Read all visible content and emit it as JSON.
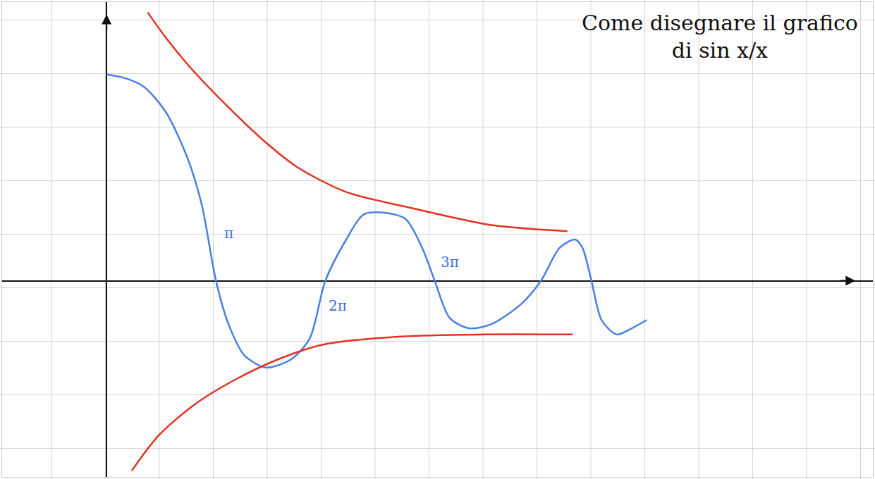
{
  "chart_data": {
    "type": "line",
    "title": "Come disegnare il grafico di sin x/x",
    "xlim": [
      -3,
      22
    ],
    "ylim": [
      -0.95,
      1.35
    ],
    "tick_labels": false,
    "line_style": "solid",
    "series": [
      {
        "color": "#4a7fe0",
        "x": [
          0,
          0.56,
          1.07,
          1.69,
          2.31,
          2.73,
          3.14,
          3.5,
          3.95,
          4.57,
          5.3,
          5.83,
          6.28,
          6.88,
          7.37,
          7.97,
          8.58,
          9.06,
          9.42,
          9.85,
          10.4,
          11.05,
          11.92,
          12.47,
          13.01,
          13.45,
          13.66,
          13.92,
          14.21,
          14.64,
          15.08,
          15.51
        ],
        "values": [
          1.0,
          0.98,
          0.94,
          0.82,
          0.6,
          0.37,
          0,
          -0.21,
          -0.36,
          -0.42,
          -0.38,
          -0.28,
          0,
          0.2,
          0.32,
          0.33,
          0.3,
          0.16,
          0,
          -0.18,
          -0.23,
          -0.21,
          -0.11,
          0,
          0.16,
          0.2,
          0.16,
          0,
          -0.19,
          -0.26,
          -0.23,
          -0.19
        ]
      },
      {
        "color": "#e53020",
        "x": [
          1.18,
          1.69,
          2.42,
          3.5,
          4.57,
          5.48,
          6.88,
          8.82,
          11.05,
          13.23
        ],
        "values": [
          1.3,
          1.18,
          1.03,
          0.84,
          0.67,
          0.55,
          0.43,
          0.35,
          0.27,
          0.24
        ]
      },
      {
        "color": "#e53020",
        "x": [
          0.72,
          1.49,
          2.52,
          3.68,
          4.93,
          6.19,
          8.44,
          10.85,
          13.38
        ],
        "values": [
          -0.92,
          -0.75,
          -0.6,
          -0.48,
          -0.38,
          -0.31,
          -0.27,
          -0.26,
          -0.26
        ]
      }
    ],
    "annotations": [
      {
        "text": "π",
        "x": 3.5,
        "y": 0.23
      },
      {
        "text": "2π",
        "x": 6.64,
        "y": -0.12
      },
      {
        "text": "3π",
        "x": 9.85,
        "y": 0.09
      }
    ]
  }
}
